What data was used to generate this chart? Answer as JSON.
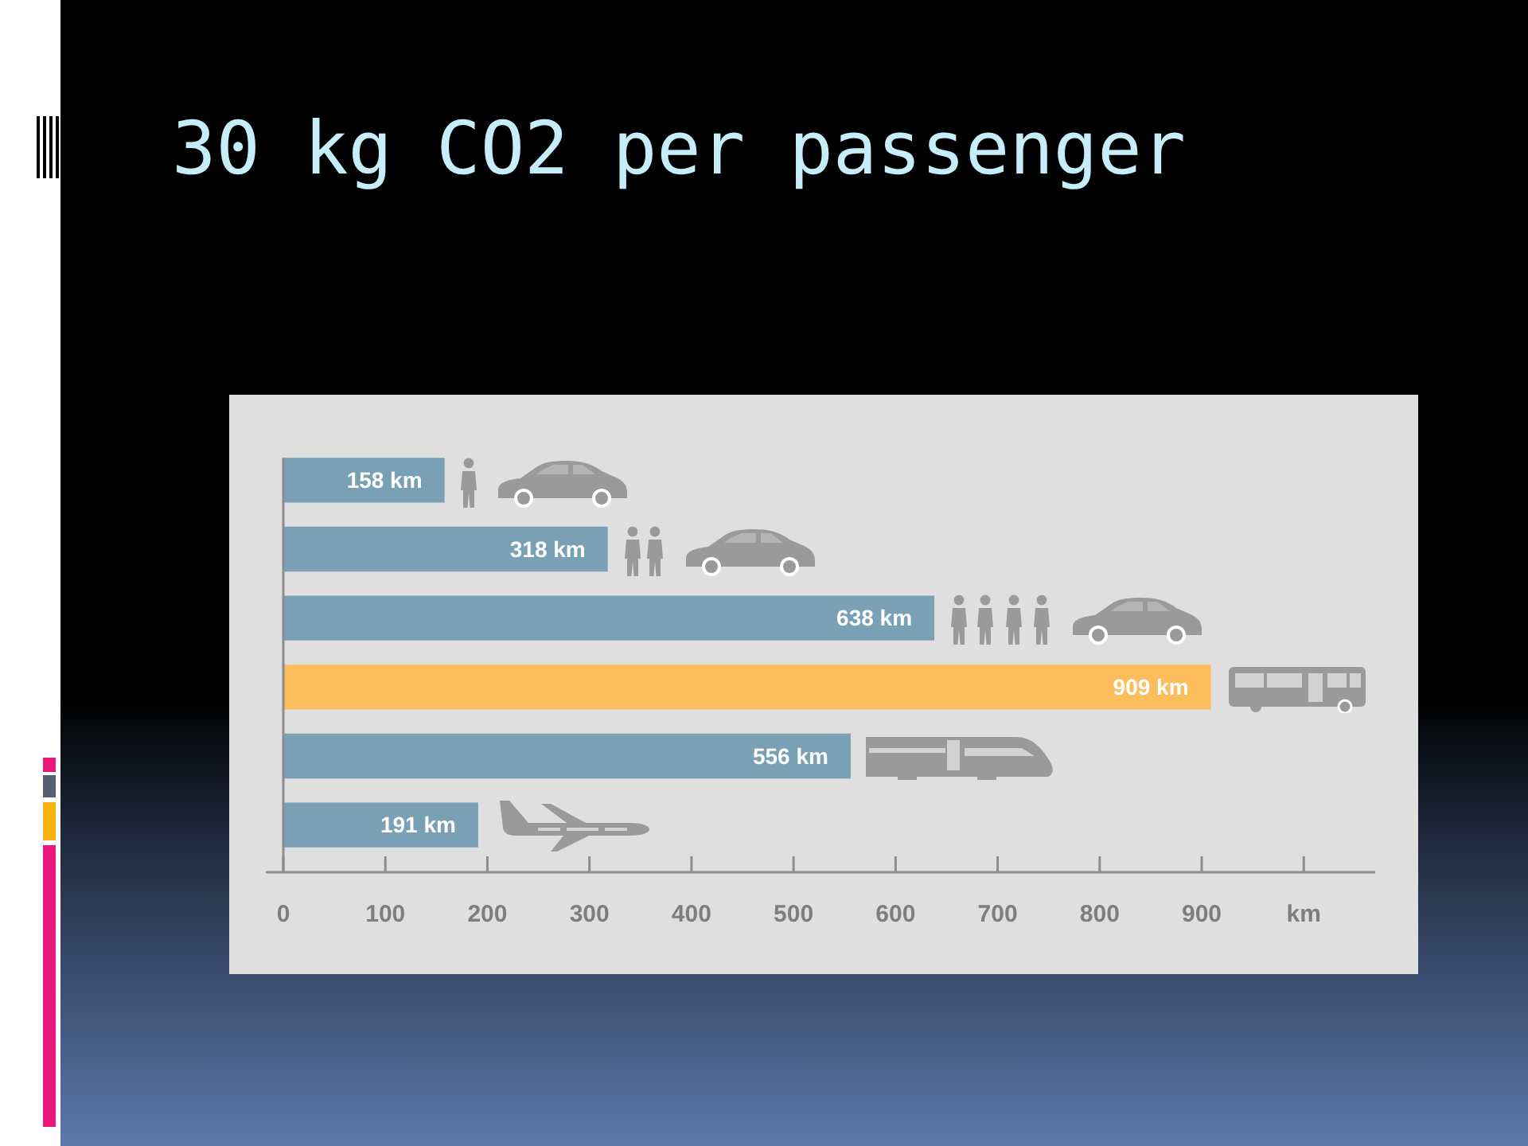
{
  "chart_data": {
    "type": "bar",
    "title": "30 kg CO2 per passenger",
    "orientation": "horizontal",
    "categories": [
      null,
      null,
      null,
      null,
      null,
      null
    ],
    "values": [
      158,
      318,
      638,
      909,
      556,
      191
    ],
    "colors": [
      "#7aa0b6",
      "#7aa0b6",
      "#7aa0b6",
      "#fdbd5c",
      "#7aa0b6",
      "#7aa0b6"
    ],
    "value_labels": [
      "158 km",
      "318 km",
      "638 km",
      "909 km",
      "556 km",
      "191 km"
    ],
    "xlim": [
      0,
      1070
    ],
    "xticks": [
      0,
      100,
      200,
      300,
      400,
      500,
      600,
      700,
      800,
      900,
      {
        "value": 1000,
        "label": "km"
      }
    ]
  }
}
